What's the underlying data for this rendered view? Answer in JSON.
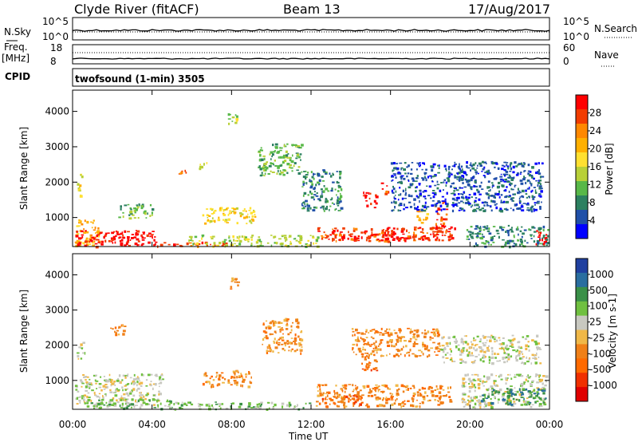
{
  "header": {
    "station_title": "Clyde River (fitACF)",
    "beam_title": "Beam 13",
    "date": "17/Aug/2017"
  },
  "top_panel": {
    "left_label": "N.Sky",
    "left_ticks": [
      "10^5",
      "10^0"
    ],
    "right_label": "N.Search",
    "right_ticks": [
      "10^5",
      "10^0"
    ]
  },
  "freq_panel": {
    "left_label_1": "Freq.",
    "left_label_2": "[MHz]",
    "left_ticks": [
      "18",
      "8"
    ],
    "right_label": "Nave",
    "right_ticks": [
      "60",
      "0"
    ],
    "cpid_label": "CPID"
  },
  "cpid_text": "twofsound (1-min) 3505",
  "x_axis": {
    "ticks": [
      "00:00",
      "04:00",
      "08:00",
      "12:00",
      "16:00",
      "20:00",
      "00:00"
    ],
    "label": "Time UT"
  },
  "chart_data": [
    {
      "type": "heatmap",
      "name": "power",
      "xlabel": "Time UT",
      "ylabel": "Slant Range [km]",
      "x_range_hours": [
        0,
        24
      ],
      "ylim": [
        180,
        4600
      ],
      "y_ticks": [
        "1000",
        "2000",
        "3000",
        "4000"
      ],
      "colorbar": {
        "label": "Power [dB]",
        "ticks": [
          "28",
          "24",
          "20",
          "16",
          "12",
          "8",
          "4"
        ],
        "colors": [
          "#ff0000",
          "#f23c00",
          "#ff8800",
          "#ffb000",
          "#ffe030",
          "#b8d038",
          "#58b848",
          "#2c8060",
          "#2050a8",
          "#0000ff"
        ]
      },
      "regions": [
        {
          "t0": 0.1,
          "t1": 1.3,
          "r0": 200,
          "r1": 950,
          "level": 3
        },
        {
          "t0": 0.1,
          "t1": 4.3,
          "r0": 200,
          "r1": 650,
          "level": 0
        },
        {
          "t0": 4.3,
          "t1": 7.8,
          "r0": 200,
          "r1": 320,
          "level": 1
        },
        {
          "t0": 5.8,
          "t1": 12.3,
          "r0": 200,
          "r1": 520,
          "level": 5
        },
        {
          "t0": 12.3,
          "t1": 19.2,
          "r0": 350,
          "r1": 750,
          "level": 1
        },
        {
          "t0": 13.5,
          "t1": 18.5,
          "r0": 380,
          "r1": 560,
          "level": 0
        },
        {
          "t0": 19.8,
          "t1": 23.9,
          "r0": 200,
          "r1": 800,
          "level": 7
        },
        {
          "t0": 23.3,
          "t1": 23.9,
          "r0": 250,
          "r1": 700,
          "level": 0
        },
        {
          "t0": 14.6,
          "t1": 15.3,
          "r0": 1300,
          "r1": 1750,
          "level": 0
        },
        {
          "t0": 15.5,
          "t1": 15.9,
          "r0": 1700,
          "r1": 2000,
          "level": 1
        },
        {
          "t0": 18.2,
          "t1": 18.8,
          "r0": 700,
          "r1": 1500,
          "level": 1
        },
        {
          "t0": 17.3,
          "t1": 17.8,
          "r0": 800,
          "r1": 1300,
          "level": 3
        },
        {
          "t0": 6.5,
          "t1": 9.2,
          "r0": 850,
          "r1": 1300,
          "level": 4
        },
        {
          "t0": 0.2,
          "t1": 0.5,
          "r0": 1600,
          "r1": 2300,
          "level": 4
        },
        {
          "t0": 7.8,
          "t1": 8.3,
          "r0": 3600,
          "r1": 3950,
          "level": 5
        },
        {
          "t0": 9.3,
          "t1": 11.5,
          "r0": 2200,
          "r1": 3100,
          "level": 6
        },
        {
          "t0": 5.2,
          "t1": 5.8,
          "r0": 2200,
          "r1": 2350,
          "level": 2
        },
        {
          "t0": 6.3,
          "t1": 6.8,
          "r0": 2400,
          "r1": 2600,
          "level": 5
        },
        {
          "t0": 2.3,
          "t1": 4.0,
          "r0": 1000,
          "r1": 1400,
          "level": 6
        },
        {
          "t0": 11.5,
          "t1": 13.5,
          "r0": 1200,
          "r1": 2400,
          "level": 7
        },
        {
          "t0": 16.0,
          "t1": 23.6,
          "r0": 1200,
          "r1": 2600,
          "level": 8
        }
      ]
    },
    {
      "type": "heatmap",
      "name": "velocity",
      "xlabel": "Time UT",
      "ylabel": "Slant Range [km]",
      "x_range_hours": [
        0,
        24
      ],
      "ylim": [
        180,
        4600
      ],
      "y_ticks": [
        "1000",
        "2000",
        "3000",
        "4000"
      ],
      "colorbar": {
        "label": "Velocity [m s-1]",
        "ticks": [
          "1000",
          "500",
          "100",
          "25",
          "-25",
          "-100",
          "-500",
          "-1000"
        ],
        "colors": [
          "#2040a0",
          "#2a6ea0",
          "#3a9048",
          "#70c040",
          "#c8c8c0",
          "#f0b848",
          "#f08018",
          "#ff6a00",
          "#f03000",
          "#e00000"
        ]
      },
      "regions": [
        {
          "t0": 0.1,
          "t1": 4.5,
          "r0": 300,
          "r1": 1200,
          "level": 4
        },
        {
          "t0": 0.5,
          "t1": 5.0,
          "r0": 200,
          "r1": 500,
          "level": 3
        },
        {
          "t0": 5.0,
          "t1": 12.0,
          "r0": 200,
          "r1": 400,
          "level": 3
        },
        {
          "t0": 12.2,
          "t1": 19.0,
          "r0": 280,
          "r1": 900,
          "level": 6
        },
        {
          "t0": 12.5,
          "t1": 14.5,
          "r0": 350,
          "r1": 600,
          "level": 7
        },
        {
          "t0": 19.5,
          "t1": 23.8,
          "r0": 250,
          "r1": 1200,
          "level": 4
        },
        {
          "t0": 20.5,
          "t1": 23.8,
          "r0": 300,
          "r1": 800,
          "level": 2
        },
        {
          "t0": 6.5,
          "t1": 9.0,
          "r0": 850,
          "r1": 1300,
          "level": 6
        },
        {
          "t0": 14.5,
          "t1": 15.3,
          "r0": 1300,
          "r1": 1700,
          "level": 7
        },
        {
          "t0": 1.8,
          "t1": 2.6,
          "r0": 2300,
          "r1": 2600,
          "level": 6
        },
        {
          "t0": 7.8,
          "t1": 8.3,
          "r0": 3600,
          "r1": 3950,
          "level": 6
        },
        {
          "t0": 9.5,
          "t1": 11.5,
          "r0": 1800,
          "r1": 2800,
          "level": 6
        },
        {
          "t0": 14.0,
          "t1": 18.5,
          "r0": 1700,
          "r1": 2500,
          "level": 6
        },
        {
          "t0": 18.5,
          "t1": 23.5,
          "r0": 1500,
          "r1": 2300,
          "level": 4
        },
        {
          "t0": 0.2,
          "t1": 0.6,
          "r0": 1600,
          "r1": 2100,
          "level": 4
        }
      ]
    }
  ]
}
